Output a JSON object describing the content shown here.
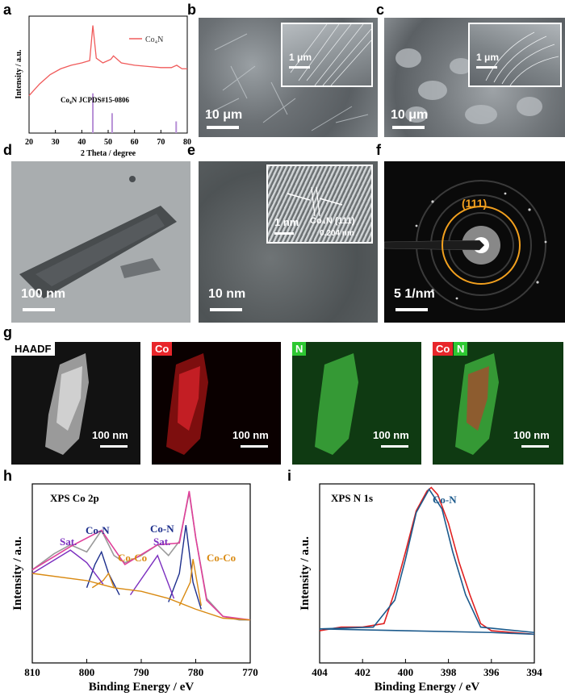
{
  "panel_labels": {
    "a": "a",
    "b": "b",
    "c": "c",
    "d": "d",
    "e": "e",
    "f": "f",
    "g": "g",
    "h": "h",
    "i": "i"
  },
  "panel_a": {
    "legend": "Co₄N",
    "reference": "Co₄N  JCPDS#15-0806",
    "xlabel": "2 Theta / degree",
    "ylabel": "Intensity / a.u.",
    "xticks": [
      "20",
      "30",
      "40",
      "50",
      "60",
      "70",
      "80"
    ]
  },
  "panel_b": {
    "scale_main": "10 μm",
    "scale_inset": "1 μm"
  },
  "panel_c": {
    "scale_main": "10 μm",
    "scale_inset": "1 μm"
  },
  "panel_d": {
    "scale": "100 nm"
  },
  "panel_e": {
    "scale": "10 nm",
    "inset_scale": "1 nm",
    "lattice_label": "Co₄N (111)",
    "lattice_spacing": "0.204 nm"
  },
  "panel_f": {
    "scale": "5 1/nm",
    "ring_label": "(111)"
  },
  "panel_g": {
    "maps": [
      {
        "tag": "HAADF",
        "scale": "100 nm"
      },
      {
        "tag": "Co",
        "scale": "100 nm"
      },
      {
        "tag": "N",
        "scale": "100 nm"
      },
      {
        "tag1": "Co",
        "tag2": "N",
        "scale": "100 nm"
      }
    ]
  },
  "colors": {
    "co_tag": "#e8262b",
    "n_tag": "#2ec832",
    "xrd_line": "#f05a5a",
    "ref_line": "#b78fd6",
    "orange_ring": "#f2a01e"
  },
  "chart_data": [
    {
      "type": "line",
      "panel": "a",
      "xlabel": "2 Theta / degree",
      "ylabel": "Intensity / a.u.",
      "xlim": [
        20,
        80
      ],
      "series": [
        {
          "name": "Co₄N",
          "x": [
            20,
            24,
            28,
            32,
            36,
            40,
            43,
            44.2,
            45.5,
            48,
            51,
            52,
            55,
            60,
            65,
            70,
            74,
            76,
            78,
            80
          ],
          "y": [
            0.32,
            0.42,
            0.5,
            0.55,
            0.58,
            0.6,
            0.62,
            0.92,
            0.64,
            0.6,
            0.63,
            0.66,
            0.6,
            0.58,
            0.57,
            0.56,
            0.56,
            0.58,
            0.55,
            0.55
          ]
        }
      ],
      "reference_peaks": {
        "name": "Co₄N  JCPDS#15-0806",
        "x": [
          44.2,
          51.5,
          75.8
        ],
        "y": [
          0.34,
          0.17,
          0.1
        ]
      }
    },
    {
      "type": "line",
      "panel": "h",
      "title": "XPS Co 2p",
      "xlabel": "Binding Energy / eV",
      "ylabel": "Intensity / a.u.",
      "xlim": [
        810,
        770
      ],
      "xticks": [
        "810",
        "800",
        "790",
        "780",
        "770"
      ],
      "annotations": [
        "Co-N",
        "Co-N",
        "Sat.",
        "Sat.",
        "Co-Co",
        "Co-Co"
      ],
      "series": [
        {
          "x": [
            810,
            806,
            803,
            800,
            797.3,
            795,
            793,
            790,
            787,
            785,
            783,
            781.2,
            780,
            778,
            775,
            772,
            770
          ],
          "y": [
            0.52,
            0.61,
            0.66,
            0.62,
            0.74,
            0.6,
            0.56,
            0.6,
            0.66,
            0.6,
            0.68,
            0.95,
            0.7,
            0.36,
            0.26,
            0.24,
            0.24
          ]
        },
        {
          "x": [
            810,
            803,
            797.3,
            793,
            787,
            783,
            781.2,
            780,
            778,
            775,
            770
          ],
          "y": [
            0.52,
            0.65,
            0.74,
            0.55,
            0.66,
            0.67,
            0.96,
            0.7,
            0.35,
            0.26,
            0.24
          ]
        },
        {
          "x": [
            800,
            798.5,
            797.3,
            796,
            794
          ],
          "y": [
            0.42,
            0.55,
            0.62,
            0.5,
            0.38
          ]
        },
        {
          "x": [
            785,
            783,
            781.8,
            780.5,
            779
          ],
          "y": [
            0.34,
            0.5,
            0.77,
            0.45,
            0.3
          ]
        },
        {
          "x": [
            799,
            797,
            796,
            795
          ],
          "y": [
            0.42,
            0.46,
            0.5,
            0.42
          ]
        },
        {
          "x": [
            783,
            781,
            780.5,
            779
          ],
          "y": [
            0.32,
            0.45,
            0.58,
            0.32
          ]
        },
        {
          "x": [
            810,
            803,
            800,
            797
          ],
          "y": [
            0.5,
            0.63,
            0.56,
            0.44
          ]
        },
        {
          "x": [
            792,
            787,
            784
          ],
          "y": [
            0.38,
            0.6,
            0.36
          ]
        },
        {
          "x": [
            810,
            800,
            795,
            790,
            785,
            780,
            775,
            770
          ],
          "y": [
            0.5,
            0.46,
            0.42,
            0.4,
            0.36,
            0.3,
            0.25,
            0.24
          ]
        }
      ]
    },
    {
      "type": "line",
      "panel": "i",
      "title": "XPS N 1s",
      "xlabel": "Binding Energy / eV",
      "ylabel": "Intensity / a.u.",
      "xlim": [
        404,
        394
      ],
      "xticks": [
        "404",
        "402",
        "400",
        "398",
        "396",
        "394"
      ],
      "annotations": [
        "Co-N"
      ],
      "series": [
        {
          "x": [
            404,
            403,
            402,
            401,
            400.5,
            400,
            399.5,
            399,
            398.8,
            398.5,
            398,
            397.5,
            397,
            396.5,
            396,
            395,
            394
          ],
          "y": [
            0.18,
            0.2,
            0.2,
            0.22,
            0.4,
            0.62,
            0.85,
            0.96,
            0.98,
            0.94,
            0.78,
            0.56,
            0.38,
            0.22,
            0.18,
            0.17,
            0.16
          ]
        },
        {
          "x": [
            404,
            401.5,
            400.5,
            400,
            399.5,
            398.9,
            398.3,
            397.8,
            397.2,
            396.5,
            394
          ],
          "y": [
            0.19,
            0.2,
            0.35,
            0.58,
            0.84,
            0.97,
            0.86,
            0.62,
            0.38,
            0.2,
            0.17
          ]
        },
        {
          "x": [
            404,
            400,
            396,
            394
          ],
          "y": [
            0.19,
            0.18,
            0.17,
            0.16
          ]
        }
      ]
    }
  ]
}
